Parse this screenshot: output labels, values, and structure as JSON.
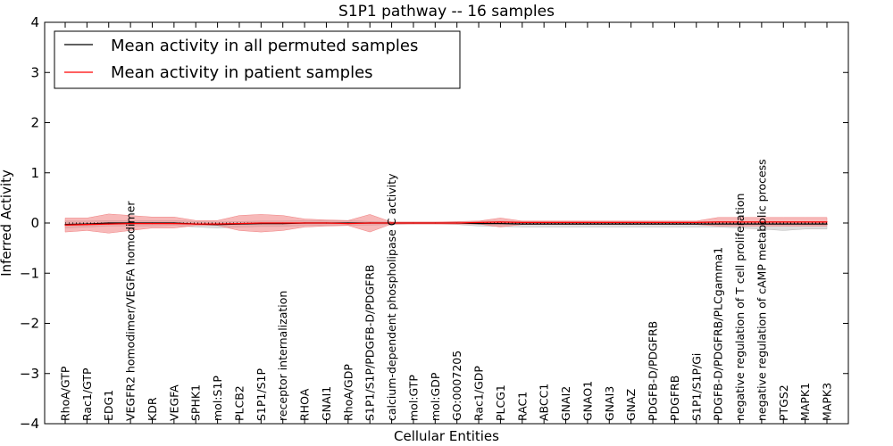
{
  "chart_data": {
    "type": "line",
    "title": "S1P1 pathway -- 16 samples",
    "xlabel": "Cellular Entities",
    "ylabel": "Inferred Activity",
    "ylim": [
      -4,
      4
    ],
    "yticks": [
      "−4",
      "−3",
      "−2",
      "−1",
      "0",
      "1",
      "2",
      "3",
      "4"
    ],
    "yticks_values": [
      -4,
      -3,
      -2,
      -1,
      0,
      1,
      2,
      3,
      4
    ],
    "legend_position": "top-left",
    "categories": [
      "RhoA/GTP",
      "Rac1/GTP",
      "EDG1",
      "VEGFR2 homodimer/VEGFA homodimer",
      "KDR",
      "VEGFA",
      "SPHK1",
      "mol:S1P",
      "PLCB2",
      "S1P1/S1P",
      "receptor internalization",
      "RHOA",
      "GNAI1",
      "RhoA/GDP",
      "S1P1/S1P/PDGFB-D/PDGFRB",
      "calcium-dependent phospholipase C activity",
      "mol:GTP",
      "mol:GDP",
      "GO:0007205",
      "Rac1/GDP",
      "PLCG1",
      "RAC1",
      "ABCC1",
      "GNAI2",
      "GNAO1",
      "GNAI3",
      "GNAZ",
      "PDGFB-D/PDGFRB",
      "PDGFRB",
      "S1P1/S1P/Gi",
      "PDGFB-D/PDGFRB/PLCgamma1",
      "negative regulation of T cell proliferation",
      "negative regulation of cAMP metabolic process",
      "PTGS2",
      "MAPK1",
      "MAPK3"
    ],
    "series": [
      {
        "name": "Mean activity in all permuted samples",
        "color": "#000000",
        "band_color": "#bbbbbb",
        "values": [
          -0.03,
          -0.02,
          0.0,
          0.0,
          0.0,
          0.0,
          -0.02,
          -0.03,
          -0.02,
          -0.01,
          -0.01,
          0.0,
          0.0,
          0.0,
          0.0,
          0.0,
          0.0,
          0.0,
          0.0,
          -0.01,
          -0.01,
          -0.02,
          -0.02,
          -0.02,
          -0.02,
          -0.02,
          -0.02,
          -0.02,
          -0.02,
          -0.02,
          -0.02,
          -0.02,
          -0.02,
          -0.02,
          -0.02,
          -0.02
        ],
        "band_lower": [
          -0.1,
          -0.08,
          -0.06,
          -0.06,
          -0.06,
          -0.05,
          -0.08,
          -0.1,
          -0.08,
          -0.07,
          -0.07,
          -0.05,
          -0.05,
          -0.05,
          -0.04,
          -0.03,
          -0.02,
          -0.02,
          -0.03,
          -0.06,
          -0.07,
          -0.08,
          -0.08,
          -0.08,
          -0.08,
          -0.08,
          -0.08,
          -0.08,
          -0.08,
          -0.08,
          -0.08,
          -0.1,
          -0.12,
          -0.15,
          -0.12,
          -0.12
        ],
        "band_upper": [
          0.04,
          0.04,
          0.05,
          0.05,
          0.05,
          0.05,
          0.03,
          0.02,
          0.03,
          0.04,
          0.04,
          0.05,
          0.05,
          0.05,
          0.03,
          0.02,
          0.02,
          0.02,
          0.02,
          0.04,
          0.04,
          0.03,
          0.03,
          0.03,
          0.03,
          0.03,
          0.03,
          0.03,
          0.03,
          0.03,
          0.03,
          0.03,
          0.03,
          0.03,
          0.03,
          0.03
        ]
      },
      {
        "name": "Mean activity in patient samples",
        "color": "#ff0000",
        "band_color": "#f08080",
        "values": [
          -0.04,
          -0.03,
          -0.02,
          -0.01,
          -0.01,
          -0.01,
          -0.02,
          -0.02,
          -0.01,
          0.0,
          0.0,
          0.0,
          0.0,
          -0.01,
          0.0,
          0.0,
          0.0,
          0.0,
          0.0,
          0.01,
          0.02,
          0.01,
          0.01,
          0.01,
          0.01,
          0.01,
          0.01,
          0.01,
          0.01,
          0.01,
          0.02,
          0.02,
          0.02,
          0.02,
          0.02,
          0.02
        ],
        "band_lower": [
          -0.18,
          -0.15,
          -0.2,
          -0.15,
          -0.1,
          -0.1,
          -0.05,
          -0.05,
          -0.15,
          -0.18,
          -0.15,
          -0.08,
          -0.06,
          -0.05,
          -0.18,
          -0.02,
          -0.02,
          -0.02,
          -0.02,
          -0.02,
          -0.08,
          -0.03,
          -0.03,
          -0.03,
          -0.03,
          -0.03,
          -0.03,
          -0.03,
          -0.03,
          -0.03,
          -0.06,
          -0.06,
          -0.06,
          -0.06,
          -0.06,
          -0.06
        ],
        "band_upper": [
          0.1,
          0.1,
          0.18,
          0.15,
          0.12,
          0.12,
          0.05,
          0.05,
          0.15,
          0.17,
          0.15,
          0.08,
          0.06,
          0.05,
          0.17,
          0.02,
          0.02,
          0.02,
          0.03,
          0.04,
          0.1,
          0.04,
          0.04,
          0.04,
          0.04,
          0.04,
          0.04,
          0.04,
          0.04,
          0.04,
          0.11,
          0.11,
          0.11,
          0.11,
          0.11,
          0.11
        ]
      }
    ]
  }
}
